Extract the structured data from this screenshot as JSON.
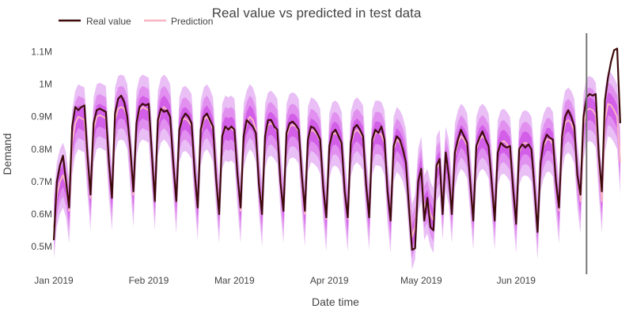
{
  "chart_data": {
    "type": "line",
    "title": "Real value vs predicted in test data",
    "xlabel": "Date time",
    "ylabel": "Demand",
    "x_range": [
      "2019-01-01",
      "2019-07-04"
    ],
    "ylim": [
      420000,
      1150000
    ],
    "y_ticks": [
      {
        "value": 500000,
        "label": "0.5M"
      },
      {
        "value": 600000,
        "label": "0.6M"
      },
      {
        "value": 700000,
        "label": "0.7M"
      },
      {
        "value": 800000,
        "label": "0.8M"
      },
      {
        "value": 900000,
        "label": "0.9M"
      },
      {
        "value": 1000000,
        "label": "1M"
      },
      {
        "value": 1100000,
        "label": "1.1M"
      }
    ],
    "x_ticks": [
      {
        "date": "2019-01-01",
        "label": "Jan 2019"
      },
      {
        "date": "2019-02-01",
        "label": "Feb 2019"
      },
      {
        "date": "2019-03-01",
        "label": "Mar 2019"
      },
      {
        "date": "2019-04-01",
        "label": "Apr 2019"
      },
      {
        "date": "2019-05-01",
        "label": "May 2019"
      },
      {
        "date": "2019-06-01",
        "label": "Jun 2019"
      }
    ],
    "grid": false,
    "legend_position": "top-left",
    "vertical_marker_date": "2019-06-24",
    "colors": {
      "real": "#3d0a0a",
      "prediction": "#f7b6c2",
      "band_outer": "#e9bff5",
      "band_mid": "#e190ef",
      "band_inner": "#d35ee8",
      "marker": "#777777",
      "text": "#444444"
    },
    "series": [
      {
        "name": "Real value",
        "role": "real",
        "start_date": "2019-01-01",
        "values": [
          520000,
          700000,
          750000,
          780000,
          700000,
          620000,
          870000,
          930000,
          920000,
          930000,
          935000,
          780000,
          660000,
          880000,
          920000,
          925000,
          920000,
          915000,
          760000,
          650000,
          910000,
          955000,
          965000,
          945000,
          900000,
          800000,
          670000,
          880000,
          930000,
          940000,
          935000,
          940000,
          790000,
          640000,
          890000,
          925000,
          915000,
          920000,
          900000,
          760000,
          640000,
          860000,
          895000,
          910000,
          900000,
          880000,
          730000,
          620000,
          860000,
          900000,
          910000,
          890000,
          870000,
          710000,
          600000,
          840000,
          870000,
          860000,
          870000,
          860000,
          720000,
          620000,
          840000,
          890000,
          880000,
          870000,
          850000,
          690000,
          600000,
          840000,
          890000,
          890000,
          870000,
          860000,
          700000,
          610000,
          850000,
          880000,
          885000,
          875000,
          860000,
          720000,
          610000,
          830000,
          870000,
          865000,
          850000,
          830000,
          680000,
          590000,
          810000,
          850000,
          860000,
          840000,
          820000,
          670000,
          590000,
          820000,
          865000,
          875000,
          860000,
          840000,
          690000,
          590000,
          830000,
          860000,
          850000,
          870000,
          830000,
          670000,
          580000,
          810000,
          840000,
          830000,
          800000,
          760000,
          620000,
          490000,
          495000,
          700000,
          740000,
          580000,
          650000,
          560000,
          550000,
          750000,
          770000,
          600000,
          790000,
          720000,
          600000,
          790000,
          830000,
          860000,
          840000,
          820000,
          700000,
          580000,
          810000,
          835000,
          855000,
          830000,
          810000,
          700000,
          580000,
          790000,
          820000,
          810000,
          805000,
          810000,
          680000,
          570000,
          800000,
          815000,
          805000,
          815000,
          800000,
          680000,
          545000,
          760000,
          820000,
          845000,
          835000,
          830000,
          700000,
          620000,
          840000,
          900000,
          920000,
          900000,
          870000,
          720000,
          660000,
          900000,
          960000,
          970000,
          965000,
          970000,
          780000,
          670000,
          950000,
          1020000,
          1070000,
          1105000,
          1110000,
          880000
        ]
      },
      {
        "name": "Prediction",
        "role": "prediction",
        "start_date": "2019-01-01",
        "values": [
          560000,
          660000,
          700000,
          720000,
          690000,
          610000,
          820000,
          880000,
          900000,
          895000,
          890000,
          760000,
          650000,
          860000,
          900000,
          905000,
          900000,
          895000,
          750000,
          650000,
          890000,
          925000,
          930000,
          925000,
          900000,
          780000,
          660000,
          880000,
          920000,
          930000,
          925000,
          920000,
          780000,
          650000,
          880000,
          920000,
          930000,
          920000,
          900000,
          760000,
          640000,
          860000,
          890000,
          895000,
          885000,
          870000,
          730000,
          620000,
          850000,
          890000,
          900000,
          885000,
          860000,
          720000,
          610000,
          840000,
          865000,
          860000,
          865000,
          855000,
          720000,
          610000,
          840000,
          880000,
          900000,
          890000,
          860000,
          700000,
          600000,
          840000,
          875000,
          880000,
          870000,
          855000,
          710000,
          610000,
          840000,
          870000,
          875000,
          870000,
          855000,
          710000,
          600000,
          830000,
          860000,
          855000,
          845000,
          825000,
          680000,
          585000,
          810000,
          845000,
          850000,
          840000,
          815000,
          675000,
          585000,
          815000,
          850000,
          860000,
          850000,
          835000,
          690000,
          590000,
          820000,
          850000,
          850000,
          845000,
          820000,
          670000,
          580000,
          800000,
          830000,
          820000,
          800000,
          760000,
          640000,
          530000,
          560000,
          700000,
          740000,
          620000,
          640000,
          600000,
          580000,
          740000,
          760000,
          620000,
          770000,
          730000,
          610000,
          780000,
          820000,
          840000,
          830000,
          810000,
          700000,
          590000,
          800000,
          830000,
          840000,
          830000,
          810000,
          700000,
          590000,
          790000,
          820000,
          825000,
          815000,
          800000,
          680000,
          580000,
          790000,
          815000,
          820000,
          815000,
          800000,
          690000,
          560000,
          770000,
          810000,
          830000,
          830000,
          815000,
          700000,
          610000,
          830000,
          880000,
          890000,
          880000,
          855000,
          720000,
          640000,
          870000,
          920000,
          925000,
          920000,
          905000,
          760000,
          640000,
          890000,
          940000,
          935000,
          920000,
          900000,
          760000
        ]
      }
    ],
    "bands": [
      {
        "name": "interval-outer",
        "color_key": "band_outer",
        "offset": 100000
      },
      {
        "name": "interval-mid",
        "color_key": "band_mid",
        "offset": 65000
      },
      {
        "name": "interval-inner",
        "color_key": "band_inner",
        "offset": 35000
      }
    ]
  }
}
